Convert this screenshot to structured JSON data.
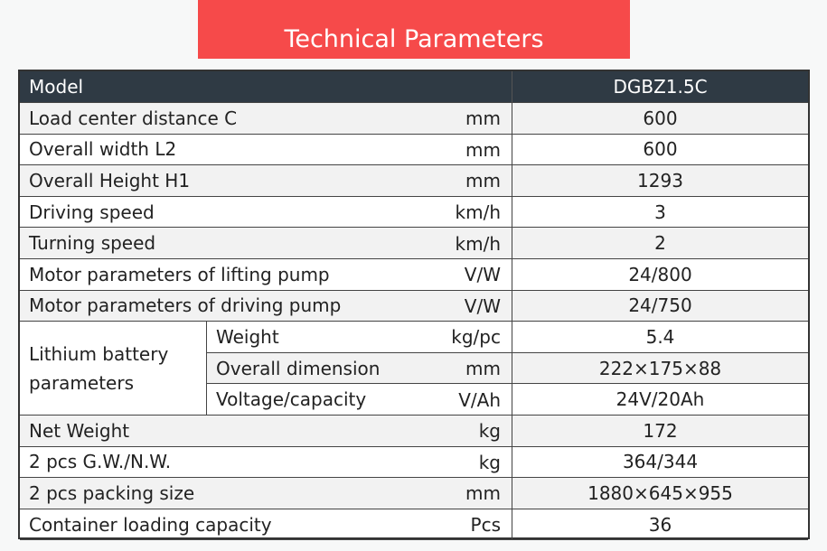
{
  "title": "Technical Parameters",
  "header": {
    "label": "Model",
    "value": "DGBZ1.5C"
  },
  "rows": [
    {
      "label": "Load center distance C",
      "unit": "mm",
      "value": "600"
    },
    {
      "label": "Overall width L2",
      "unit": "mm",
      "value": "600"
    },
    {
      "label": "Overall Height H1",
      "unit": "mm",
      "value": "1293"
    },
    {
      "label": "Driving speed",
      "unit": "km/h",
      "value": "3"
    },
    {
      "label": "Turning speed",
      "unit": "km/h",
      "value": "2"
    },
    {
      "label": "Motor parameters of lifting pump",
      "unit": "V/W",
      "value": "24/800"
    },
    {
      "label": "Motor parameters of driving pump",
      "unit": "V/W",
      "value": "24/750"
    }
  ],
  "battery": {
    "group_label": "Lithium battery parameters",
    "rows": [
      {
        "label": "Weight",
        "unit": "kg/pc",
        "value": "5.4"
      },
      {
        "label": "Overall dimension",
        "unit": "mm",
        "value": "222×175×88"
      },
      {
        "label": "Voltage/capacity",
        "unit": "V/Ah",
        "value": "24V/20Ah"
      }
    ]
  },
  "rows2": [
    {
      "label": "Net Weight",
      "unit": "kg",
      "value": "172"
    },
    {
      "label": "2 pcs G.W./N.W.",
      "unit": "kg",
      "value": "364/344"
    },
    {
      "label": "2 pcs packing size",
      "unit": "mm",
      "value": "1880×645×955"
    },
    {
      "label": "Container loading capacity",
      "unit": "Pcs",
      "value": "36"
    }
  ]
}
